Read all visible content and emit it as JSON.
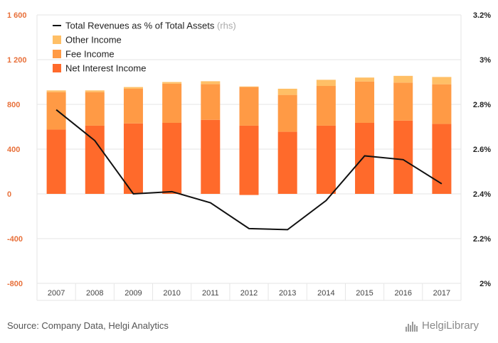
{
  "chart_data": {
    "type": "bar",
    "categories": [
      "2007",
      "2008",
      "2009",
      "2010",
      "2011",
      "2012",
      "2013",
      "2014",
      "2015",
      "2016",
      "2017"
    ],
    "series": [
      {
        "name": "Net Interest Income",
        "type": "stacked-bar",
        "axis": "left",
        "color": "#ff6a2b",
        "values": [
          575,
          610,
          630,
          635,
          662,
          610,
          555,
          610,
          635,
          655,
          625
        ]
      },
      {
        "name": "Fee Income",
        "type": "stacked-bar",
        "axis": "left",
        "color": "#ff9a45",
        "values": [
          335,
          300,
          310,
          350,
          320,
          345,
          330,
          355,
          370,
          340,
          355
        ]
      },
      {
        "name": "Other Income",
        "type": "stacked-bar",
        "axis": "left",
        "color": "#ffbf66",
        "values": [
          15,
          15,
          15,
          15,
          25,
          5,
          55,
          55,
          35,
          60,
          65
        ]
      },
      {
        "name": "Total Revenues as % of Total Assets",
        "type": "line",
        "axis": "right",
        "color": "#111111",
        "values": [
          2.776,
          2.638,
          2.4,
          2.41,
          2.36,
          2.245,
          2.24,
          2.37,
          2.57,
          2.553,
          2.445
        ]
      }
    ],
    "negative_values": {
      "Net Interest Income": [
        0,
        0,
        0,
        0,
        0,
        -10,
        0,
        0,
        0,
        0,
        0
      ]
    },
    "ylim_left": [
      -800,
      1600
    ],
    "ylim_right": [
      2.0,
      3.2
    ],
    "yticks_left": [
      "1 600",
      "1 200",
      "800",
      "400",
      "0",
      "-400",
      "-800"
    ],
    "yticks_right": [
      "3.2%",
      "3%",
      "2.8%",
      "2.6%",
      "2.4%",
      "2.2%",
      "2%"
    ],
    "legend": {
      "position": "top-left",
      "entries": [
        {
          "label": "Total Revenues as % of Total Assets",
          "note": "(rhs)",
          "marker": "line",
          "color": "#111111"
        },
        {
          "label": "Other Income",
          "marker": "box",
          "color": "#ffbf66"
        },
        {
          "label": "Fee Income",
          "marker": "box",
          "color": "#ff9a45"
        },
        {
          "label": "Net Interest Income",
          "marker": "box",
          "color": "#ff6a2b"
        }
      ]
    },
    "grid": true
  },
  "footer": {
    "source": "Source: Company Data, Helgi Analytics",
    "logo_text": "HelgiLibrary"
  },
  "colors": {
    "left_axis": "#e8703a",
    "grid": "#e6e6e6"
  },
  "icons": {
    "logo": "helgi-skyline-icon"
  }
}
